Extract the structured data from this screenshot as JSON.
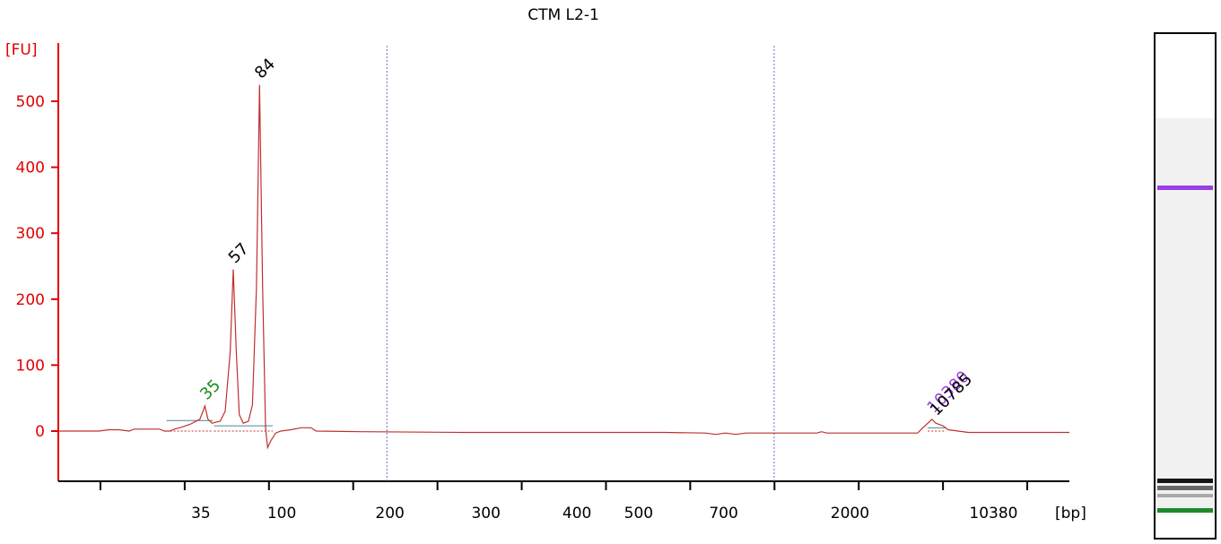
{
  "chart_data": {
    "type": "line",
    "title": "CTM L2-1",
    "ylabel": "[FU]",
    "xlabel": "[bp]",
    "ylim": [
      -80,
      580
    ],
    "y_ticks": [
      "500",
      "400",
      "300",
      "200",
      "100",
      "0"
    ],
    "x_ticks": [
      "35",
      "100",
      "200",
      "300",
      "400",
      "500",
      "700",
      "2000",
      "10380"
    ],
    "x_axis_tick_marks": 12,
    "series": [
      {
        "color": "#c0302e",
        "points": [
          [
            0,
            0
          ],
          [
            4,
            0
          ],
          [
            5,
            2
          ],
          [
            6,
            2
          ],
          [
            7,
            0
          ],
          [
            7.5,
            3
          ],
          [
            8,
            3
          ],
          [
            10,
            3
          ],
          [
            10.5,
            0
          ],
          [
            11,
            0
          ],
          [
            11.5,
            3
          ],
          [
            12,
            5
          ],
          [
            13,
            10
          ],
          [
            14,
            18
          ],
          [
            14.5,
            38
          ],
          [
            14.8,
            18
          ],
          [
            15.2,
            12
          ],
          [
            16,
            15
          ],
          [
            16.5,
            30
          ],
          [
            17.0,
            120
          ],
          [
            17.3,
            245
          ],
          [
            17.6,
            120
          ],
          [
            17.9,
            25
          ],
          [
            18.3,
            12
          ],
          [
            18.8,
            15
          ],
          [
            19.2,
            40
          ],
          [
            19.6,
            220
          ],
          [
            19.9,
            525
          ],
          [
            20.2,
            220
          ],
          [
            20.5,
            5
          ],
          [
            20.7,
            -25
          ],
          [
            21.0,
            -15
          ],
          [
            21.5,
            -3
          ],
          [
            22,
            0
          ],
          [
            23,
            2
          ],
          [
            24,
            5
          ],
          [
            25,
            5
          ],
          [
            25.5,
            0
          ],
          [
            30,
            -1
          ],
          [
            40,
            -2
          ],
          [
            50,
            -2
          ],
          [
            60,
            -2
          ],
          [
            64,
            -3
          ],
          [
            65,
            -5
          ],
          [
            66,
            -3
          ],
          [
            67,
            -5
          ],
          [
            68,
            -3
          ],
          [
            72,
            -3
          ],
          [
            75,
            -3
          ],
          [
            75.5,
            -1
          ],
          [
            76,
            -3
          ],
          [
            80,
            -3
          ],
          [
            85,
            -3
          ],
          [
            85.5,
            5
          ],
          [
            86,
            12
          ],
          [
            86.4,
            18
          ],
          [
            86.8,
            12
          ],
          [
            87.5,
            8
          ],
          [
            88,
            2
          ],
          [
            89,
            0
          ],
          [
            90,
            -2
          ],
          [
            100,
            -2
          ]
        ]
      }
    ],
    "peaks": [
      {
        "label": "35",
        "x": 14.5,
        "y": 38,
        "color": "#1a8c1a"
      },
      {
        "label": "57",
        "x": 17.3,
        "y": 245,
        "color": "#000000"
      },
      {
        "label": "84",
        "x": 19.9,
        "y": 525,
        "color": "#000000"
      },
      {
        "label": "10380",
        "x": 86.4,
        "y": 18,
        "color": "#a040e0"
      },
      {
        "label": "10785",
        "x": 86.7,
        "y": 14,
        "color": "#000000"
      }
    ],
    "region_lines": [
      {
        "x1": 10.7,
        "x2": 15.3,
        "y": 16
      },
      {
        "x1": 15.4,
        "x2": 21.2,
        "y": 8
      },
      {
        "x1": 86.0,
        "x2": 87.8,
        "y": 5
      }
    ],
    "marker_lines_x": [
      32.5,
      70.8
    ],
    "grid": false
  },
  "gel": {
    "bands": [
      {
        "color": "#9a3fe8",
        "pos": 0.305
      },
      {
        "color": "#151515",
        "pos": 0.887
      },
      {
        "color": "#666666",
        "pos": 0.9
      },
      {
        "color": "#a9a9a9",
        "pos": 0.916
      },
      {
        "color": "#1e8a2a",
        "pos": 0.944
      }
    ]
  }
}
